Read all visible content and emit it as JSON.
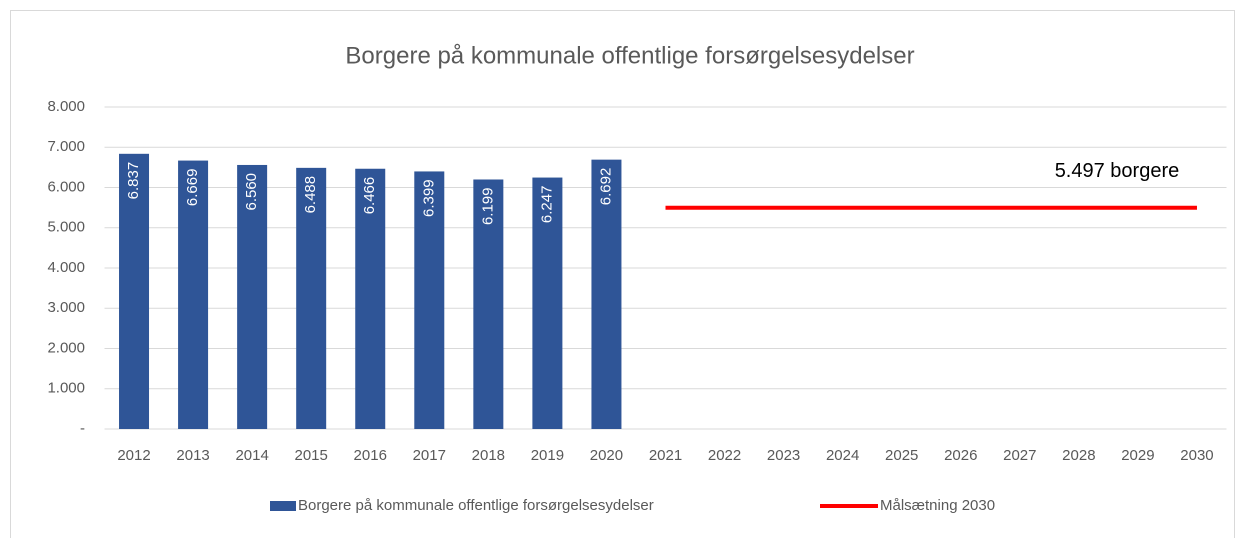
{
  "chart_data": {
    "type": "bar",
    "title": "Borgere på kommunale offentlige forsørgelsesydelser",
    "categories": [
      "2012",
      "2013",
      "2014",
      "2015",
      "2016",
      "2017",
      "2018",
      "2019",
      "2020",
      "2021",
      "2022",
      "2023",
      "2024",
      "2025",
      "2026",
      "2027",
      "2028",
      "2029",
      "2030"
    ],
    "series": [
      {
        "name": "Borgere på kommunale offentlige forsørgelsesydelser",
        "type": "bar",
        "color": "#2f5597",
        "values": [
          6837,
          6669,
          6560,
          6488,
          6466,
          6399,
          6199,
          6247,
          6692,
          null,
          null,
          null,
          null,
          null,
          null,
          null,
          null,
          null,
          null
        ],
        "value_labels": [
          "6.837",
          "6.669",
          "6.560",
          "6.488",
          "6.466",
          "6.399",
          "6.199",
          "6.247",
          "6.692",
          null,
          null,
          null,
          null,
          null,
          null,
          null,
          null,
          null,
          null
        ]
      },
      {
        "name": "Målsætning 2030",
        "type": "line",
        "color": "#ff0000",
        "values": [
          null,
          null,
          null,
          null,
          null,
          null,
          null,
          null,
          null,
          5497,
          5497,
          5497,
          5497,
          5497,
          5497,
          5497,
          5497,
          5497,
          5497
        ]
      }
    ],
    "annotation": "5.497 borgere",
    "ylim": [
      0,
      8000
    ],
    "yticks": [
      {
        "value": 0,
        "label": "-"
      },
      {
        "value": 1000,
        "label": "1.000"
      },
      {
        "value": 2000,
        "label": "2.000"
      },
      {
        "value": 3000,
        "label": "3.000"
      },
      {
        "value": 4000,
        "label": "4.000"
      },
      {
        "value": 5000,
        "label": "5.000"
      },
      {
        "value": 6000,
        "label": "6.000"
      },
      {
        "value": 7000,
        "label": "7.000"
      },
      {
        "value": 8000,
        "label": "8.000"
      }
    ],
    "grid": true,
    "legend": "bottom"
  }
}
